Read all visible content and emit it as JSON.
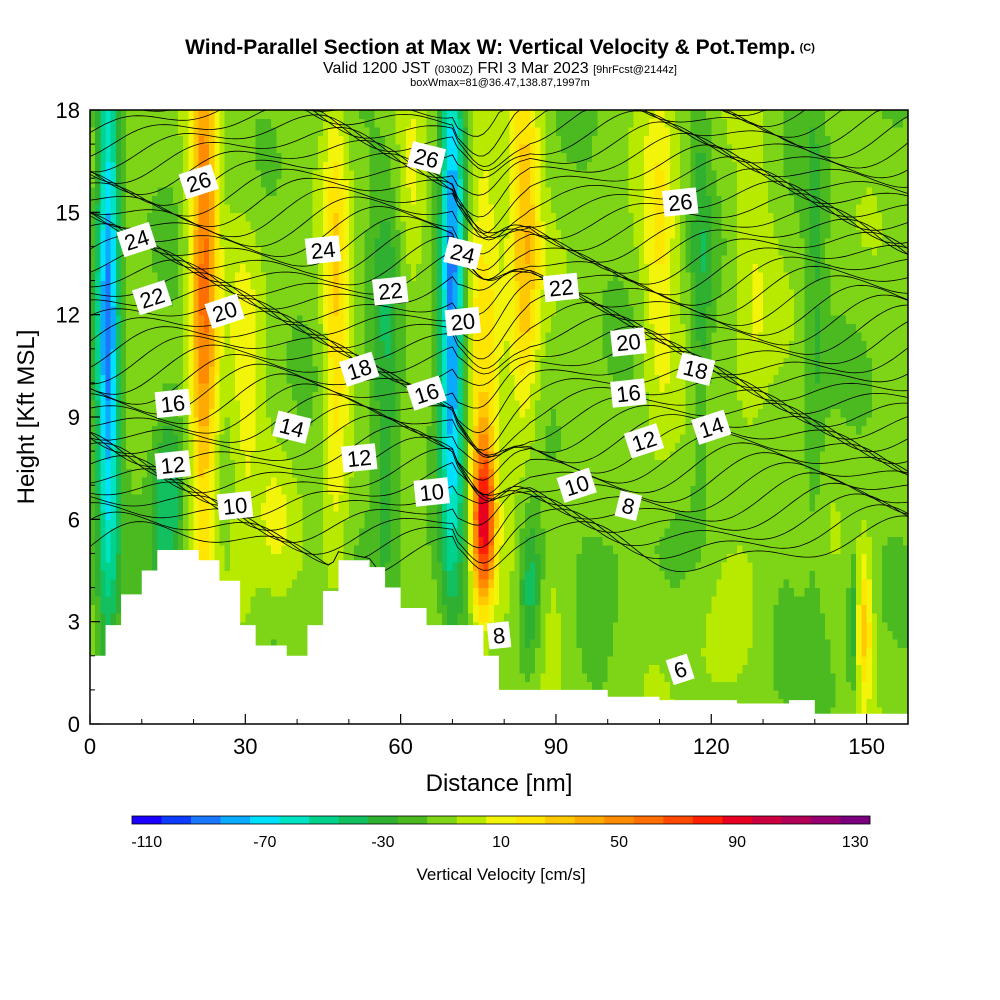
{
  "header": {
    "title": "Wind-Parallel Section at Max W: Vertical Velocity & Pot.Temp.",
    "title_tag": "(C)",
    "subtitle_a": "Valid 1200 JST",
    "subtitle_b": "(0300Z)",
    "subtitle_c": "FRI 3 Mar 2023",
    "subtitle_d": "[9hrFcst@2144z]",
    "subtitle2": "boxWmax=81@36.47,138.87,1997m"
  },
  "chart_data": {
    "type": "heatmap",
    "xlabel": "Distance [nm]",
    "ylabel": "Height [Kft MSL]",
    "xlim": [
      0,
      158
    ],
    "ylim": [
      0,
      18
    ],
    "x_ticks": [
      0,
      30,
      60,
      90,
      120,
      150
    ],
    "y_ticks": [
      0,
      3,
      6,
      9,
      12,
      15,
      18
    ],
    "colorbar": {
      "title": "Vertical Velocity [cm/s]",
      "levels": [
        -110,
        -100,
        -90,
        -80,
        -70,
        -60,
        -50,
        -40,
        -30,
        -20,
        -10,
        0,
        10,
        20,
        30,
        40,
        50,
        60,
        70,
        80,
        90,
        100,
        110,
        120,
        130,
        140
      ],
      "colors": [
        "#1c00ff",
        "#0e3cff",
        "#1a78ff",
        "#0aaaff",
        "#00e0ff",
        "#00e3c2",
        "#00d28c",
        "#12c060",
        "#30b030",
        "#4aba20",
        "#7ed416",
        "#b8ea00",
        "#f2f40a",
        "#ffe600",
        "#ffc800",
        "#ffaa00",
        "#ff8c00",
        "#ff6e00",
        "#ff4800",
        "#ff2000",
        "#e80020",
        "#cc0040",
        "#b20058",
        "#960070",
        "#7a0080"
      ],
      "tick_labels": [
        -110,
        -70,
        -30,
        10,
        50,
        90,
        130
      ]
    },
    "terrain_kft": [
      [
        0,
        2.0
      ],
      [
        3,
        2.9
      ],
      [
        6,
        3.8
      ],
      [
        10,
        4.5
      ],
      [
        13,
        5.1
      ],
      [
        21,
        4.8
      ],
      [
        25,
        4.2
      ],
      [
        29,
        2.9
      ],
      [
        32,
        2.3
      ],
      [
        38,
        2.0
      ],
      [
        42,
        2.9
      ],
      [
        45,
        3.9
      ],
      [
        48,
        4.8
      ],
      [
        54,
        4.6
      ],
      [
        57,
        4.0
      ],
      [
        60,
        3.4
      ],
      [
        65,
        2.9
      ],
      [
        72,
        2.9
      ],
      [
        76,
        2.0
      ],
      [
        79,
        1.0
      ],
      [
        100,
        0.8
      ],
      [
        110,
        0.7
      ],
      [
        125,
        0.6
      ],
      [
        135,
        0.7
      ],
      [
        140,
        0.3
      ],
      [
        158,
        0.3
      ]
    ],
    "theta_contour_labels": [
      {
        "text": "26",
        "x": 21,
        "y": 15.9
      },
      {
        "text": "26",
        "x": 65,
        "y": 16.6
      },
      {
        "text": "26",
        "x": 114,
        "y": 15.3
      },
      {
        "text": "24",
        "x": 9,
        "y": 14.2
      },
      {
        "text": "24",
        "x": 45,
        "y": 13.9
      },
      {
        "text": "24",
        "x": 72,
        "y": 13.8
      },
      {
        "text": "22",
        "x": 12,
        "y": 12.5
      },
      {
        "text": "22",
        "x": 58,
        "y": 12.7
      },
      {
        "text": "22",
        "x": 91,
        "y": 12.8
      },
      {
        "text": "20",
        "x": 26,
        "y": 12.1
      },
      {
        "text": "20",
        "x": 72,
        "y": 11.8
      },
      {
        "text": "20",
        "x": 104,
        "y": 11.2
      },
      {
        "text": "18",
        "x": 52,
        "y": 10.4
      },
      {
        "text": "18",
        "x": 117,
        "y": 10.4
      },
      {
        "text": "16",
        "x": 16,
        "y": 9.4
      },
      {
        "text": "16",
        "x": 65,
        "y": 9.7
      },
      {
        "text": "16",
        "x": 104,
        "y": 9.7
      },
      {
        "text": "14",
        "x": 39,
        "y": 8.7
      },
      {
        "text": "14",
        "x": 120,
        "y": 8.7
      },
      {
        "text": "12",
        "x": 16,
        "y": 7.6
      },
      {
        "text": "12",
        "x": 52,
        "y": 7.8
      },
      {
        "text": "12",
        "x": 107,
        "y": 8.3
      },
      {
        "text": "10",
        "x": 28,
        "y": 6.4
      },
      {
        "text": "10",
        "x": 66,
        "y": 6.8
      },
      {
        "text": "10",
        "x": 94,
        "y": 7.0
      },
      {
        "text": "8",
        "x": 104,
        "y": 6.4
      },
      {
        "text": "8",
        "x": 79,
        "y": 2.6
      },
      {
        "text": "6",
        "x": 114,
        "y": 1.6
      }
    ]
  }
}
